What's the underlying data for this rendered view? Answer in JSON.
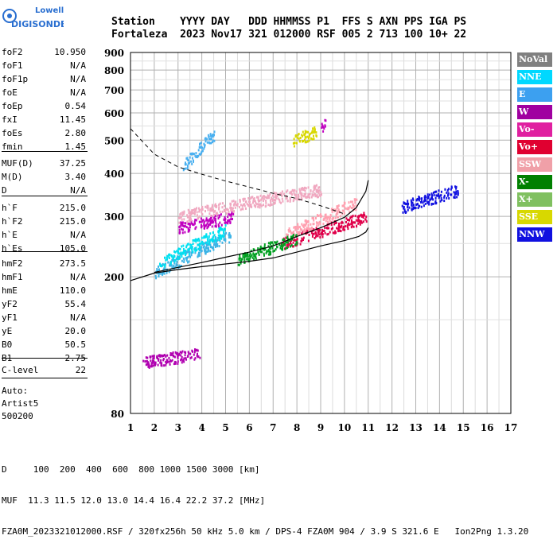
{
  "logo": {
    "line1": "Lowell",
    "line2": "DIGISONDE"
  },
  "header": {
    "row1": "Station    YYYY DAY   DDD HHMMSS P1  FFS S AXN PPS IGA PS",
    "row2": "Fortaleza  2023 Nov17 321 012000 RSF 005 2 713 100 10+ 22"
  },
  "params": {
    "group1": [
      {
        "k": "foF2",
        "v": "10.950"
      },
      {
        "k": "foF1",
        "v": "N/A"
      },
      {
        "k": "foF1p",
        "v": "N/A"
      },
      {
        "k": "foE",
        "v": "N/A"
      },
      {
        "k": "foEp",
        "v": "0.54"
      },
      {
        "k": "fxI",
        "v": "11.45"
      },
      {
        "k": "foEs",
        "v": "2.80"
      },
      {
        "k": "fmin",
        "v": "1.45"
      }
    ],
    "group2": [
      {
        "k": "MUF(D)",
        "v": "37.25"
      },
      {
        "k": "M(D)",
        "v": "3.40"
      },
      {
        "k": "D",
        "v": "N/A"
      }
    ],
    "group3": [
      {
        "k": "h`F",
        "v": "215.0"
      },
      {
        "k": "h`F2",
        "v": "215.0"
      },
      {
        "k": "h`E",
        "v": "N/A"
      },
      {
        "k": "h`Es",
        "v": "105.0"
      }
    ],
    "group4": [
      {
        "k": "hmF2",
        "v": "273.5"
      },
      {
        "k": "hmF1",
        "v": "N/A"
      },
      {
        "k": "hmE",
        "v": "110.0"
      },
      {
        "k": "yF2",
        "v": "55.4"
      },
      {
        "k": "yF1",
        "v": "N/A"
      },
      {
        "k": "yE",
        "v": "20.0"
      },
      {
        "k": "B0",
        "v": "50.5"
      },
      {
        "k": "B1",
        "v": "2.75"
      }
    ],
    "group5": [
      {
        "k": "C-level",
        "v": "22"
      }
    ],
    "auto": [
      "Auto:",
      "Artist5",
      "500200"
    ]
  },
  "chart_data": {
    "type": "scatter",
    "xlim": [
      1,
      17
    ],
    "ylim": [
      80,
      900
    ],
    "y_scale": "log",
    "x_ticks": [
      1,
      2,
      3,
      4,
      5,
      6,
      7,
      8,
      9,
      10,
      11,
      12,
      13,
      14,
      15,
      16,
      17
    ],
    "y_ticks": [
      80,
      200,
      300,
      400,
      500,
      600,
      700,
      800,
      900
    ],
    "grid": true,
    "dashed_curve": [
      [
        1,
        540
      ],
      [
        2,
        455
      ],
      [
        3,
        418
      ],
      [
        4,
        398
      ],
      [
        5,
        380
      ],
      [
        6,
        365
      ],
      [
        7,
        350
      ],
      [
        8,
        338
      ],
      [
        9,
        322
      ],
      [
        10,
        305
      ]
    ],
    "solid_curve": [
      [
        1,
        195
      ],
      [
        2,
        205
      ],
      [
        3,
        210
      ],
      [
        4,
        214
      ],
      [
        5,
        218
      ],
      [
        6,
        222
      ],
      [
        7,
        227
      ],
      [
        8,
        236
      ],
      [
        9,
        246
      ],
      [
        10,
        255
      ],
      [
        10.6,
        262
      ],
      [
        10.9,
        270
      ],
      [
        11,
        278
      ]
    ],
    "trace_curve": [
      [
        2,
        206
      ],
      [
        3,
        213
      ],
      [
        4,
        220
      ],
      [
        5,
        228
      ],
      [
        6,
        236
      ],
      [
        7,
        246
      ],
      [
        8,
        262
      ],
      [
        9,
        278
      ],
      [
        10,
        298
      ],
      [
        10.5,
        318
      ],
      [
        10.9,
        355
      ],
      [
        11,
        382
      ]
    ],
    "echoes": [
      {
        "x1": 2,
        "x2": 5.2,
        "y1": 205,
        "y2": 265,
        "color": "#3cb4e6"
      },
      {
        "x1": 2.2,
        "x2": 5,
        "y1": 220,
        "y2": 275,
        "color": "#00e0f0"
      },
      {
        "x1": 3,
        "x2": 5.3,
        "y1": 280,
        "y2": 300,
        "color": "#c000c0"
      },
      {
        "x1": 7.3,
        "x2": 10.9,
        "y1": 250,
        "y2": 300,
        "color": "#e0004a"
      },
      {
        "x1": 7.5,
        "x2": 10.5,
        "y1": 265,
        "y2": 330,
        "color": "#ffa0b0"
      },
      {
        "x1": 5.5,
        "x2": 8,
        "y1": 225,
        "y2": 260,
        "color": "#00a020"
      },
      {
        "x1": 3,
        "x2": 9,
        "y1": 300,
        "y2": 360,
        "color": "#f0a8c0"
      },
      {
        "x1": 12.4,
        "x2": 14.8,
        "y1": 320,
        "y2": 360,
        "color": "#1010e0"
      },
      {
        "x1": 1.5,
        "x2": 3.9,
        "y1": 113,
        "y2": 120,
        "color": "#b000b0"
      },
      {
        "x1": 3.2,
        "x2": 4.5,
        "y1": 420,
        "y2": 520,
        "color": "#4ab0f0"
      },
      {
        "x1": 7.8,
        "x2": 8.8,
        "y1": 500,
        "y2": 530,
        "color": "#d8d800"
      },
      {
        "x1": 9,
        "x2": 9.2,
        "y1": 545,
        "y2": 560,
        "color": "#c000c0"
      }
    ],
    "legend": [
      {
        "label": "NoVal",
        "color": "#808080"
      },
      {
        "label": "NNE",
        "color": "#00d8ff"
      },
      {
        "label": "E",
        "color": "#3ca0f0"
      },
      {
        "label": "W",
        "color": "#a000a0"
      },
      {
        "label": "Vo-",
        "color": "#e020a0"
      },
      {
        "label": "Vo+",
        "color": "#e00030"
      },
      {
        "label": "SSW",
        "color": "#f0a0a8"
      },
      {
        "label": "X-",
        "color": "#008000"
      },
      {
        "label": "X+",
        "color": "#80c060"
      },
      {
        "label": "SSE",
        "color": "#d8d800"
      },
      {
        "label": "NNW",
        "color": "#1010e0"
      }
    ]
  },
  "footer": {
    "row1": "D     100  200  400  600  800 1000 1500 3000 [km]",
    "row2": "MUF  11.3 11.5 12.0 13.0 14.4 16.4 22.2 37.2 [MHz]",
    "row3": "FZA0M_2023321012000.RSF / 320fx256h 50 kHz 5.0 km / DPS-4 FZA0M 904 / 3.9 S 321.6 E   Ion2Png 1.3.20"
  }
}
